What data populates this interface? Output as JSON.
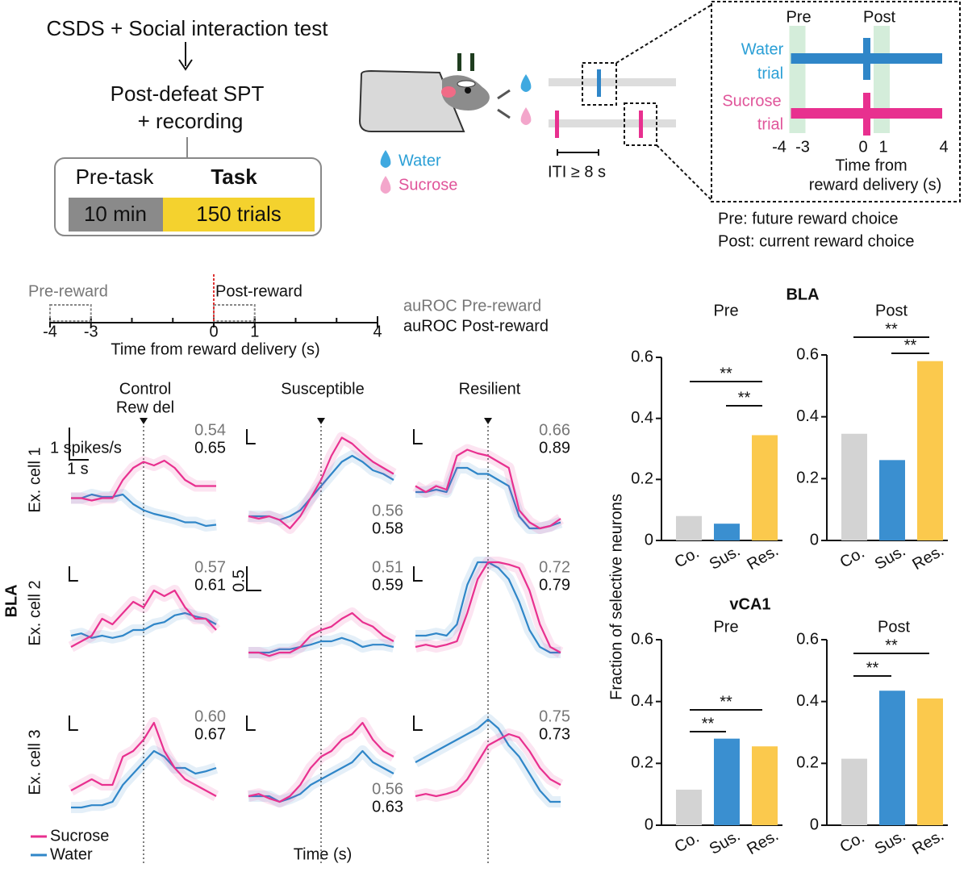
{
  "protocol": {
    "step1": "CSDS + Social interaction test",
    "step2a": "Post-defeat SPT",
    "step2b": "+ recording",
    "pre_task": "Pre-task",
    "task": "Task",
    "pre_duration": "10 min",
    "task_trials": "150 trials"
  },
  "setup": {
    "water": "Water",
    "sucrose": "Sucrose",
    "iti": "ITI ≥ 8 s"
  },
  "inset": {
    "pre": "Pre",
    "post": "Post",
    "water_trial": [
      "Water",
      "trial"
    ],
    "sucrose_trial": [
      "Sucrose",
      "trial"
    ],
    "xticks": [
      -4,
      -3,
      0,
      1,
      4
    ],
    "xlabel": [
      "Time from",
      "reward delivery (s)"
    ],
    "notes": [
      "Pre: future reward choice",
      "Post: current reward choice"
    ]
  },
  "timeline": {
    "pre_reward": "Pre-reward",
    "post_reward": "Post-reward",
    "xlim": [
      -4,
      4
    ],
    "xticks": [
      -4,
      -3,
      0,
      1,
      4
    ],
    "xlabel": "Time from reward delivery (s)",
    "auroc_pre_label": "auROC Pre-reward",
    "auroc_post_label": "auROC Post-reward"
  },
  "traces": {
    "region": "BLA",
    "columns": [
      "Control",
      "Susceptible",
      "Resilient"
    ],
    "event_label": "Rew del",
    "rows": [
      "Ex. cell 1",
      "Ex. cell 2",
      "Ex. cell 3"
    ],
    "xlabel": "Time (s)",
    "scale_y": "1 spikes/s",
    "scale_x": "1 s",
    "scale_alt": "0.5",
    "series": [
      {
        "name": "Sucrose",
        "color": "#e8308f"
      },
      {
        "name": "Water",
        "color": "#2f86c8"
      }
    ],
    "panels": [
      {
        "auroc_pre": 0.54,
        "auroc_post": 0.65,
        "sucrose": [
          0.35,
          0.35,
          0.33,
          0.35,
          0.35,
          0.5,
          0.6,
          0.65,
          0.62,
          0.66,
          0.6,
          0.5,
          0.45,
          0.45,
          0.45
        ],
        "water": [
          0.35,
          0.35,
          0.38,
          0.36,
          0.36,
          0.38,
          0.3,
          0.25,
          0.22,
          0.2,
          0.18,
          0.15,
          0.15,
          0.12,
          0.13
        ]
      },
      {
        "auroc_pre": 0.56,
        "auroc_post": 0.58,
        "sucrose": [
          0.2,
          0.18,
          0.2,
          0.17,
          0.1,
          0.2,
          0.35,
          0.5,
          0.7,
          0.85,
          0.8,
          0.72,
          0.65,
          0.6,
          0.55
        ],
        "water": [
          0.2,
          0.2,
          0.2,
          0.17,
          0.2,
          0.25,
          0.35,
          0.45,
          0.55,
          0.65,
          0.7,
          0.65,
          0.58,
          0.55,
          0.5
        ]
      },
      {
        "auroc_pre": 0.66,
        "auroc_post": 0.89,
        "sucrose": [
          0.45,
          0.4,
          0.45,
          0.42,
          0.7,
          0.75,
          0.72,
          0.7,
          0.65,
          0.6,
          0.25,
          0.15,
          0.1,
          0.12,
          0.18
        ],
        "water": [
          0.4,
          0.4,
          0.42,
          0.4,
          0.6,
          0.6,
          0.55,
          0.55,
          0.5,
          0.45,
          0.2,
          0.1,
          0.1,
          0.12,
          0.15
        ]
      },
      {
        "auroc_pre": 0.57,
        "auroc_post": 0.61,
        "sucrose": [
          0.2,
          0.25,
          0.3,
          0.45,
          0.4,
          0.5,
          0.6,
          0.55,
          0.7,
          0.65,
          0.7,
          0.55,
          0.45,
          0.45,
          0.35
        ],
        "water": [
          0.3,
          0.32,
          0.28,
          0.3,
          0.28,
          0.3,
          0.35,
          0.35,
          0.4,
          0.42,
          0.48,
          0.5,
          0.47,
          0.45,
          0.4
        ]
      },
      {
        "auroc_pre": 0.51,
        "auroc_post": 0.59,
        "sucrose": [
          0.15,
          0.15,
          0.12,
          0.15,
          0.15,
          0.2,
          0.3,
          0.35,
          0.38,
          0.45,
          0.5,
          0.42,
          0.38,
          0.3,
          0.25
        ],
        "water": [
          0.15,
          0.15,
          0.15,
          0.18,
          0.18,
          0.2,
          0.22,
          0.25,
          0.25,
          0.28,
          0.25,
          0.2,
          0.22,
          0.22,
          0.2
        ]
      },
      {
        "auroc_pre": 0.72,
        "auroc_post": 0.79,
        "sucrose": [
          0.2,
          0.22,
          0.2,
          0.22,
          0.25,
          0.5,
          0.8,
          0.95,
          0.95,
          0.93,
          0.9,
          0.7,
          0.4,
          0.2,
          0.15
        ],
        "water": [
          0.3,
          0.3,
          0.32,
          0.3,
          0.4,
          0.75,
          0.95,
          0.95,
          0.9,
          0.8,
          0.6,
          0.35,
          0.2,
          0.15,
          0.15
        ]
      },
      {
        "auroc_pre": {
          "value": 0.6,
          "label": "0.60"
        },
        "auroc_post": 0.67,
        "sucrose": [
          0.25,
          0.3,
          0.35,
          0.3,
          0.3,
          0.55,
          0.6,
          0.7,
          0.85,
          0.6,
          0.45,
          0.35,
          0.3,
          0.25,
          0.2
        ],
        "water": [
          0.1,
          0.1,
          0.12,
          0.12,
          0.15,
          0.3,
          0.4,
          0.5,
          0.6,
          0.55,
          0.45,
          0.45,
          0.4,
          0.42,
          0.45
        ]
      },
      {
        "auroc_pre": 0.56,
        "auroc_post": 0.63,
        "sucrose": [
          0.2,
          0.22,
          0.18,
          0.15,
          0.2,
          0.3,
          0.45,
          0.55,
          0.6,
          0.7,
          0.75,
          0.85,
          0.7,
          0.6,
          0.55
        ],
        "water": [
          0.2,
          0.2,
          0.2,
          0.15,
          0.18,
          0.22,
          0.3,
          0.35,
          0.4,
          0.45,
          0.5,
          0.6,
          0.5,
          0.45,
          0.4
        ]
      },
      {
        "auroc_pre": 0.75,
        "auroc_post": 0.73,
        "sucrose": [
          0.2,
          0.22,
          0.2,
          0.22,
          0.25,
          0.35,
          0.5,
          0.65,
          0.7,
          0.75,
          0.72,
          0.6,
          0.45,
          0.35,
          0.3
        ],
        "water": [
          0.5,
          0.55,
          0.6,
          0.65,
          0.7,
          0.75,
          0.8,
          0.88,
          0.8,
          0.65,
          0.55,
          0.4,
          0.25,
          0.15,
          0.15
        ]
      }
    ]
  },
  "bar_regions": [
    "BLA",
    "vCA1"
  ],
  "bar_ylabel": "Fraction of selective neurons",
  "chart_data": [
    {
      "type": "bar",
      "title": "Pre",
      "categories": [
        "Co.",
        "Sus.",
        "Res."
      ],
      "values": [
        0.08,
        0.055,
        0.345
      ],
      "colors": [
        "#d3d3d3",
        "#3a8fd0",
        "#fbc94d"
      ],
      "ylim": [
        0,
        0.6
      ],
      "yticks": [
        0,
        0.2,
        0.4,
        0.6
      ],
      "annotations": [
        "**",
        "**"
      ]
    },
    {
      "type": "bar",
      "title": "Post",
      "categories": [
        "Co.",
        "Sus.",
        "Res."
      ],
      "values": [
        0.345,
        0.26,
        0.58
      ],
      "colors": [
        "#d3d3d3",
        "#3a8fd0",
        "#fbc94d"
      ],
      "ylim": [
        0,
        0.6
      ],
      "yticks": [
        0,
        0.2,
        0.4,
        0.6
      ],
      "annotations": [
        "**",
        "**"
      ]
    },
    {
      "type": "bar",
      "title": "Pre",
      "categories": [
        "Co.",
        "Sus.",
        "Res."
      ],
      "values": [
        0.115,
        0.28,
        0.255
      ],
      "colors": [
        "#d3d3d3",
        "#3a8fd0",
        "#fbc94d"
      ],
      "ylim": [
        0,
        0.6
      ],
      "yticks": [
        0,
        0.2,
        0.4,
        0.6
      ],
      "annotations": [
        "**",
        "**"
      ]
    },
    {
      "type": "bar",
      "title": "Post",
      "categories": [
        "Co.",
        "Sus.",
        "Res."
      ],
      "values": [
        0.215,
        0.435,
        0.41
      ],
      "colors": [
        "#d3d3d3",
        "#3a8fd0",
        "#fbc94d"
      ],
      "ylim": [
        0,
        0.6
      ],
      "yticks": [
        0,
        0.2,
        0.4,
        0.6
      ],
      "annotations": [
        "**",
        "**"
      ]
    }
  ]
}
